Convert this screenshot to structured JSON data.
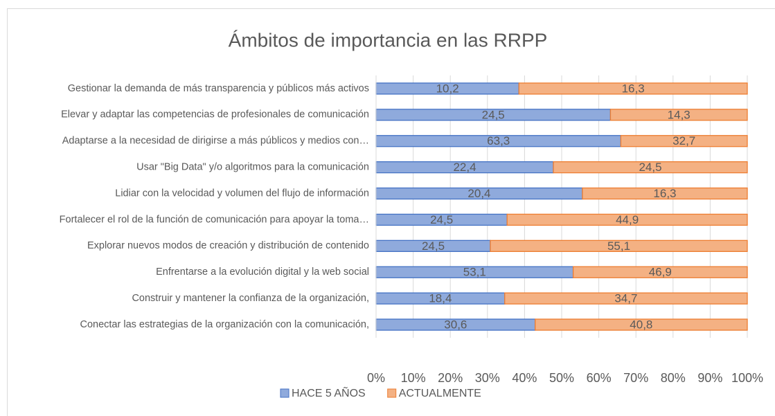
{
  "chart_data": {
    "type": "bar",
    "orientation": "horizontal",
    "stack": "percent",
    "title": "Ámbitos de importancia en las RRPP",
    "categories": [
      "Gestionar la demanda de más transparencia y públicos más activos",
      "Elevar y adaptar las competencias de profesionales de comunicación",
      "Adaptarse a la necesidad de dirigirse a más públicos y medios con…",
      "Usar \"Big Data\" y/o algoritmos para la comunicación",
      "Lidiar con la velocidad y volumen del flujo de información",
      "Fortalecer el rol de la función de comunicación para apoyar la toma…",
      "Explorar nuevos modos de creación y distribución de contenido",
      "Enfrentarse a la evolución digital y la web social",
      "Construir y mantener la confianza de la organización,",
      "Conectar las estrategias de la organización con la comunicación,"
    ],
    "series": [
      {
        "name": "HACE 5 AÑOS",
        "color": "#8faadc",
        "stroke": "#4472c4",
        "values": [
          10.2,
          24.5,
          63.3,
          22.4,
          20.4,
          24.5,
          24.5,
          53.1,
          18.4,
          30.6
        ],
        "value_labels": [
          "10,2",
          "24,5",
          "63,3",
          "22,4",
          "20,4",
          "24,5",
          "24,5",
          "53,1",
          "18,4",
          "30,6"
        ]
      },
      {
        "name": "ACTUALMENTE",
        "color": "#f4b183",
        "stroke": "#ed7d31",
        "values": [
          16.3,
          14.3,
          32.7,
          24.5,
          16.3,
          44.9,
          55.1,
          46.9,
          34.7,
          40.8
        ],
        "value_labels": [
          "16,3",
          "14,3",
          "32,7",
          "24,5",
          "16,3",
          "44,9",
          "55,1",
          "46,9",
          "34,7",
          "40,8"
        ]
      }
    ],
    "xlim": [
      0,
      100
    ],
    "xticks": [
      {
        "value": 0,
        "label": "0%"
      },
      {
        "value": 10,
        "label": "10%"
      },
      {
        "value": 20,
        "label": "20%"
      },
      {
        "value": 30,
        "label": "30%"
      },
      {
        "value": 40,
        "label": "40%"
      },
      {
        "value": 50,
        "label": "50%"
      },
      {
        "value": 60,
        "label": "60%"
      },
      {
        "value": 70,
        "label": "70%"
      },
      {
        "value": 80,
        "label": "80%"
      },
      {
        "value": 90,
        "label": "90%"
      },
      {
        "value": 100,
        "label": "100%"
      }
    ],
    "grid": true,
    "legend": "bottom"
  }
}
